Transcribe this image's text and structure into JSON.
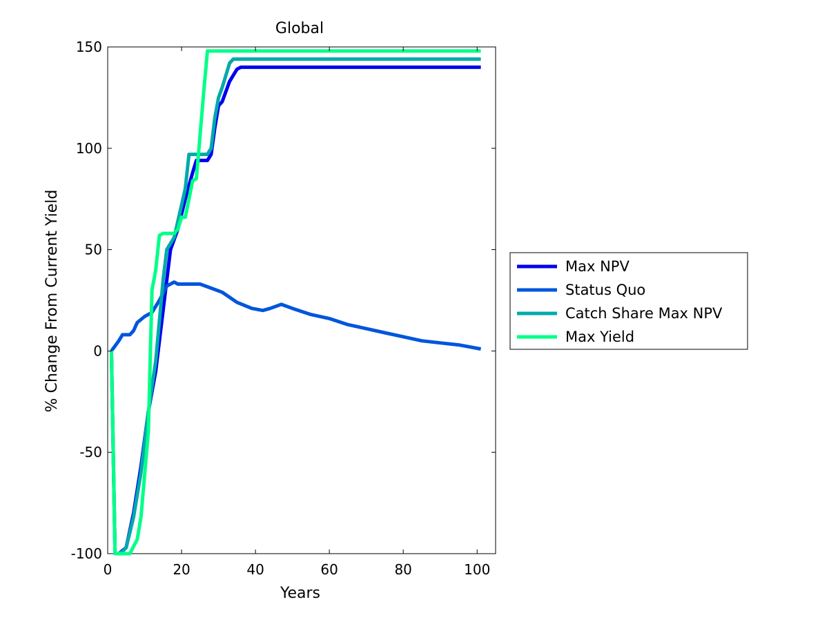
{
  "chart_data": {
    "type": "line",
    "title": "Global",
    "xlabel": "Years",
    "ylabel": "% Change From Current Yield",
    "xlim": [
      0,
      105
    ],
    "ylim": [
      -100,
      150
    ],
    "xticks": [
      0,
      20,
      40,
      60,
      80,
      100
    ],
    "yticks": [
      -100,
      -50,
      0,
      50,
      100,
      150
    ],
    "grid": false,
    "legend_position": "outside-right",
    "series": [
      {
        "name": "Max NPV",
        "color": "#0000ee",
        "points": [
          [
            1,
            0
          ],
          [
            2,
            -100
          ],
          [
            3,
            -100
          ],
          [
            5,
            -97
          ],
          [
            7,
            -80
          ],
          [
            9,
            -57
          ],
          [
            11,
            -30
          ],
          [
            13,
            -10
          ],
          [
            15,
            20
          ],
          [
            17,
            50
          ],
          [
            19,
            60
          ],
          [
            21,
            75
          ],
          [
            23,
            88
          ],
          [
            24,
            94
          ],
          [
            26,
            94
          ],
          [
            27,
            94
          ],
          [
            28,
            97
          ],
          [
            29,
            110
          ],
          [
            30,
            121
          ],
          [
            31,
            123
          ],
          [
            33,
            133
          ],
          [
            35,
            139
          ],
          [
            36,
            140
          ],
          [
            50,
            140
          ],
          [
            80,
            140
          ],
          [
            101,
            140
          ]
        ]
      },
      {
        "name": "Status Quo",
        "color": "#0055dd",
        "points": [
          [
            1,
            0
          ],
          [
            3,
            5
          ],
          [
            4,
            8
          ],
          [
            6,
            8
          ],
          [
            7,
            10
          ],
          [
            8,
            14
          ],
          [
            10,
            17
          ],
          [
            12,
            19
          ],
          [
            14,
            25
          ],
          [
            16,
            32
          ],
          [
            18,
            34
          ],
          [
            19,
            33
          ],
          [
            22,
            33
          ],
          [
            25,
            33
          ],
          [
            28,
            31
          ],
          [
            31,
            29
          ],
          [
            35,
            24
          ],
          [
            39,
            21
          ],
          [
            42,
            20
          ],
          [
            44,
            21
          ],
          [
            47,
            23
          ],
          [
            50,
            21
          ],
          [
            55,
            18
          ],
          [
            60,
            16
          ],
          [
            65,
            13
          ],
          [
            70,
            11
          ],
          [
            75,
            9
          ],
          [
            80,
            7
          ],
          [
            85,
            5
          ],
          [
            90,
            4
          ],
          [
            95,
            3
          ],
          [
            101,
            1
          ]
        ]
      },
      {
        "name": "Catch Share Max NPV",
        "color": "#00aaaa",
        "points": [
          [
            1,
            0
          ],
          [
            2,
            -100
          ],
          [
            3,
            -100
          ],
          [
            4,
            -99
          ],
          [
            5,
            -97
          ],
          [
            7,
            -82
          ],
          [
            9,
            -60
          ],
          [
            11,
            -30
          ],
          [
            13,
            -5
          ],
          [
            15,
            35
          ],
          [
            16,
            50
          ],
          [
            18,
            56
          ],
          [
            20,
            72
          ],
          [
            21,
            80
          ],
          [
            22,
            97
          ],
          [
            25,
            97
          ],
          [
            27,
            97
          ],
          [
            28,
            100
          ],
          [
            29,
            115
          ],
          [
            30,
            125
          ],
          [
            31,
            130
          ],
          [
            33,
            142
          ],
          [
            34,
            144
          ],
          [
            50,
            144
          ],
          [
            80,
            144
          ],
          [
            101,
            144
          ]
        ]
      },
      {
        "name": "Max Yield",
        "color": "#00ff88",
        "points": [
          [
            1,
            0
          ],
          [
            2,
            -100
          ],
          [
            3,
            -100
          ],
          [
            6,
            -100
          ],
          [
            8,
            -93
          ],
          [
            9,
            -82
          ],
          [
            11,
            -40
          ],
          [
            12,
            30
          ],
          [
            13,
            40
          ],
          [
            14,
            57
          ],
          [
            15,
            58
          ],
          [
            18,
            58
          ],
          [
            19,
            60
          ],
          [
            20,
            66
          ],
          [
            21,
            66
          ],
          [
            22,
            75
          ],
          [
            23,
            84
          ],
          [
            24,
            85
          ],
          [
            26,
            128
          ],
          [
            27,
            148
          ],
          [
            28,
            148
          ],
          [
            50,
            148
          ],
          [
            80,
            148
          ],
          [
            101,
            148
          ]
        ]
      }
    ]
  }
}
